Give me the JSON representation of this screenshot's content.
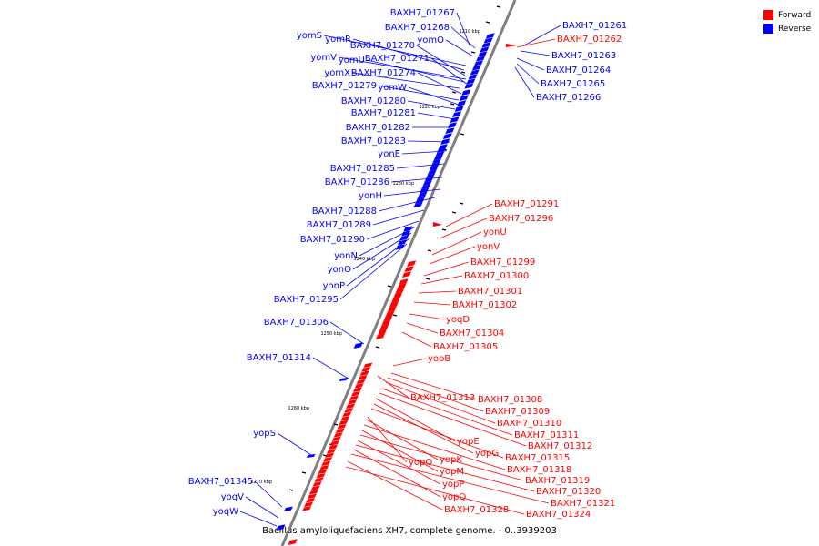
{
  "legend": {
    "forward_label": "Forward",
    "reverse_label": "Reverse"
  },
  "colors": {
    "forward": "#ff0000",
    "reverse": "#0000ff",
    "axis": "#808080",
    "tick": "#000000"
  },
  "caption": "Bacillus amyloliquefaciens XH7, complete genome. - 0..3939203",
  "scale_ticks": [
    "1210 kbp",
    "1220 kbp",
    "1230 kbp",
    "1240 kbp",
    "1250 kbp",
    "1260 kbp",
    "1270 kbp"
  ],
  "reverse_genes": [
    "BAXH7_01267",
    "BAXH7_01268",
    "yomO",
    "yomS",
    "yomR",
    "BAXH7_01270",
    "yomV",
    "yomU",
    "BAXH7_01271",
    "yomX",
    "BAXH7_01274",
    "BAXH7_01279",
    "yomW",
    "BAXH7_01280",
    "BAXH7_01281",
    "BAXH7_01282",
    "BAXH7_01283",
    "yonE",
    "BAXH7_01285",
    "BAXH7_01286",
    "yonH",
    "BAXH7_01288",
    "BAXH7_01289",
    "BAXH7_01290",
    "yonN",
    "yonO",
    "yonP",
    "BAXH7_01295",
    "BAXH7_01306",
    "BAXH7_01314",
    "yopS",
    "BAXH7_01345",
    "yoqV",
    "yoqW",
    "BAXH7_01261",
    "BAXH7_01263",
    "BAXH7_01264",
    "BAXH7_01265",
    "BAXH7_01266"
  ],
  "forward_genes": [
    "BAXH7_01262",
    "BAXH7_01291",
    "BAXH7_01296",
    "yonU",
    "yonV",
    "BAXH7_01299",
    "BAXH7_01300",
    "BAXH7_01301",
    "BAXH7_01302",
    "yoqD",
    "BAXH7_01304",
    "BAXH7_01305",
    "yopB",
    "BAXH7_01313",
    "BAXH7_01308",
    "BAXH7_01309",
    "BAXH7_01310",
    "BAXH7_01311",
    "BAXH7_01312",
    "yopE",
    "yopG",
    "BAXH7_01315",
    "yopO",
    "yopK",
    "BAXH7_01318",
    "yopM",
    "BAXH7_01319",
    "yopP",
    "BAXH7_01320",
    "yopQ",
    "BAXH7_01321",
    "BAXH7_01328",
    "BAXH7_01324"
  ]
}
